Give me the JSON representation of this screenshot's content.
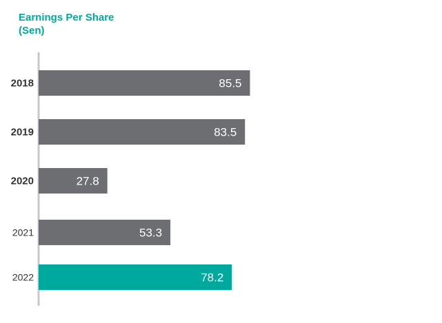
{
  "colors": {
    "title": "#00a99d",
    "bar": "#6d6e71",
    "highlight": "#00a99d",
    "axis": "#c8c8c8",
    "category_text": "#333333",
    "value_text": "#ffffff"
  },
  "chart_data": {
    "type": "bar",
    "orientation": "horizontal",
    "title": "Earnings Per Share",
    "subtitle": "(Sen)",
    "categories": [
      "2018",
      "2019",
      "2020",
      "2021",
      "2022"
    ],
    "values": [
      85.5,
      83.5,
      27.8,
      53.3,
      78.2
    ],
    "value_labels": [
      "85.5",
      "83.5",
      "27.8",
      "53.3",
      "78.2"
    ],
    "highlight_category": "2022",
    "xlabel": "",
    "ylabel": "",
    "xlim": [
      0,
      100
    ],
    "grid": false,
    "legend": "none"
  }
}
